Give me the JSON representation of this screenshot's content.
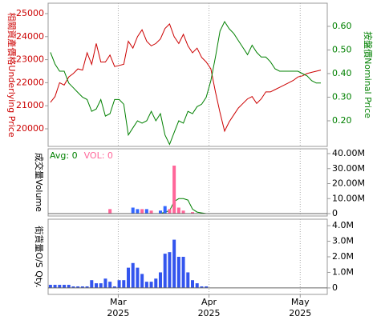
{
  "chart_data": [
    {
      "type": "line",
      "y_label": "相關資產價格Underlying Price",
      "y2_label": "按盤價Nominal Price",
      "xlim": [
        -0.5,
        60.4
      ],
      "ylim": [
        19236,
        25451
      ],
      "yticks": [
        20000,
        21000,
        22000,
        23000,
        24000,
        25000
      ],
      "y2lim": [
        0.0915,
        0.698
      ],
      "y2ticks": [
        {
          "value": 0.2,
          "label": "0.20"
        },
        {
          "value": 0.3,
          "label": "0.30"
        },
        {
          "value": 0.4,
          "label": "0.40"
        },
        {
          "value": 0.5,
          "label": "0.50"
        },
        {
          "value": 0.6,
          "label": "0.60"
        }
      ],
      "series": [
        {
          "color": "#cc0000",
          "values": [
            21150,
            21400,
            22000,
            21900,
            22250,
            22400,
            22600,
            22550,
            23300,
            22800,
            23700,
            22900,
            22900,
            23200,
            22700,
            22750,
            22800,
            23800,
            23500,
            24000,
            24300,
            23800,
            23600,
            23700,
            23900,
            24350,
            24550,
            24000,
            23700,
            24100,
            23600,
            23300,
            23500,
            23100,
            22900,
            22600,
            21600,
            20700,
            19900,
            20300,
            20600,
            20900,
            21100,
            21300,
            21400,
            21100,
            21300,
            21600,
            21600,
            21700,
            21800,
            21900,
            22000,
            22100,
            22250,
            22300,
            22400,
            22450,
            22500,
            22550
          ]
        },
        {
          "color": "#008000",
          "axis": "y2",
          "values": [
            0.49,
            0.44,
            0.41,
            0.41,
            0.36,
            0.34,
            0.32,
            0.3,
            0.29,
            0.24,
            0.25,
            0.29,
            0.22,
            0.23,
            0.29,
            0.29,
            0.27,
            0.14,
            0.17,
            0.2,
            0.19,
            0.2,
            0.24,
            0.2,
            0.23,
            0.14,
            0.1,
            0.15,
            0.2,
            0.19,
            0.24,
            0.23,
            0.26,
            0.27,
            0.3,
            0.37,
            0.47,
            0.58,
            0.62,
            0.59,
            0.57,
            0.54,
            0.51,
            0.48,
            0.52,
            0.49,
            0.47,
            0.47,
            0.45,
            0.42,
            0.41,
            0.41,
            0.41,
            0.41,
            0.41,
            0.4,
            0.39,
            0.37,
            0.36,
            0.36
          ]
        }
      ]
    },
    {
      "type": "bar",
      "y_label": "成交量Volume",
      "xlim": [
        -0.5,
        60.4
      ],
      "ylim": [
        -1600000,
        43200000
      ],
      "yticks": [
        0,
        {
          "value": 10000000,
          "label": "10.00M"
        },
        {
          "value": 20000000,
          "label": "20.00M"
        },
        {
          "value": 30000000,
          "label": "30.00M"
        },
        {
          "value": 40000000,
          "label": "40.00M"
        }
      ],
      "series": [
        {
          "name": "Avg: 0",
          "type": "line",
          "color": "#008000",
          "values": [
            0,
            0,
            0,
            0,
            0,
            0,
            0,
            0,
            0,
            0,
            0,
            0,
            0,
            0,
            0,
            0,
            0,
            0,
            0,
            0,
            0,
            0,
            0,
            0,
            0,
            1000000,
            2000000,
            8000000,
            10000000,
            10000000,
            9000000,
            3000000,
            1000000,
            500000,
            0,
            0,
            0,
            0,
            0,
            0,
            0,
            0,
            0,
            0,
            0,
            0,
            0,
            0,
            0,
            0,
            0,
            0,
            0,
            0,
            0,
            0,
            0,
            0,
            0,
            0
          ]
        },
        {
          "name": "VOL: 0",
          "type": "bar",
          "color": "#ff6699",
          "values": [
            0,
            0,
            0,
            0,
            0,
            0,
            0,
            0,
            0,
            0,
            0,
            0,
            0,
            3000000,
            0,
            0,
            0,
            0,
            4000000,
            3000000,
            3000000,
            3000000,
            2000000,
            0,
            2000000,
            5000000,
            3000000,
            32000000,
            4000000,
            2000000,
            0,
            1000000,
            0,
            0,
            0,
            0,
            0,
            0,
            0,
            0,
            0,
            0,
            0,
            0,
            0,
            0,
            0,
            0,
            0,
            0,
            0,
            0,
            0,
            0,
            0,
            0,
            0,
            0,
            0,
            0
          ],
          "colors": [
            "#3366ff",
            "#3366ff",
            "#3366ff",
            "#3366ff",
            "#3366ff",
            "#3366ff",
            "#3366ff",
            "#3366ff",
            "#3366ff",
            "#3366ff",
            "#3366ff",
            "#3366ff",
            "#3366ff",
            "#ff6699",
            "#3366ff",
            "#3366ff",
            "#3366ff",
            "#3366ff",
            "#3366ff",
            "#3366ff",
            "#ff6699",
            "#3366ff",
            "#ff6699",
            "#3366ff",
            "#3366ff",
            "#3366ff",
            "#ff6699",
            "#ff6699",
            "#ff6699",
            "#ff6699",
            "#ff6699",
            "#ff6699",
            "#3366ff",
            "#3366ff",
            "#3366ff",
            "#3366ff",
            "#3366ff",
            "#3366ff",
            "#3366ff",
            "#3366ff",
            "#3366ff",
            "#3366ff",
            "#3366ff",
            "#3366ff",
            "#3366ff",
            "#3366ff",
            "#3366ff",
            "#3366ff",
            "#3366ff",
            "#3366ff",
            "#3366ff",
            "#3366ff",
            "#3366ff",
            "#3366ff",
            "#3366ff",
            "#3366ff",
            "#3366ff",
            "#3366ff",
            "#3366ff",
            "#3366ff"
          ]
        }
      ]
    },
    {
      "type": "bar",
      "y_label": "街貨量O/S Qty.",
      "xlim": [
        -0.5,
        60.4
      ],
      "ylim": [
        -415000,
        4415000
      ],
      "yticks": [
        0,
        {
          "value": 1000000,
          "label": "1.0M"
        },
        {
          "value": 2000000,
          "label": "2.0M"
        },
        {
          "value": 3000000,
          "label": "3.0M"
        },
        {
          "value": 4000000,
          "label": "4.0M"
        }
      ],
      "xticks": [
        {
          "value": 14.8,
          "label": "Mar 2025"
        },
        {
          "value": 34.6,
          "label": "Apr 2025"
        },
        {
          "value": 54.5,
          "label": "May 2025"
        }
      ],
      "grid": true,
      "series": [
        {
          "type": "bar",
          "color": "#3355ee",
          "values": [
            200000,
            200000,
            200000,
            200000,
            200000,
            100000,
            100000,
            100000,
            100000,
            500000,
            300000,
            300000,
            600000,
            400000,
            100000,
            500000,
            500000,
            1300000,
            1600000,
            1300000,
            900000,
            400000,
            400000,
            600000,
            1000000,
            2200000,
            2300000,
            3100000,
            2000000,
            2000000,
            1000000,
            500000,
            300000,
            100000,
            100000,
            0,
            0,
            0,
            0,
            0,
            0,
            0,
            0,
            0,
            0,
            0,
            0,
            0,
            0,
            0,
            0,
            0,
            0,
            0,
            0,
            0,
            0,
            0,
            0,
            0
          ]
        }
      ]
    }
  ]
}
